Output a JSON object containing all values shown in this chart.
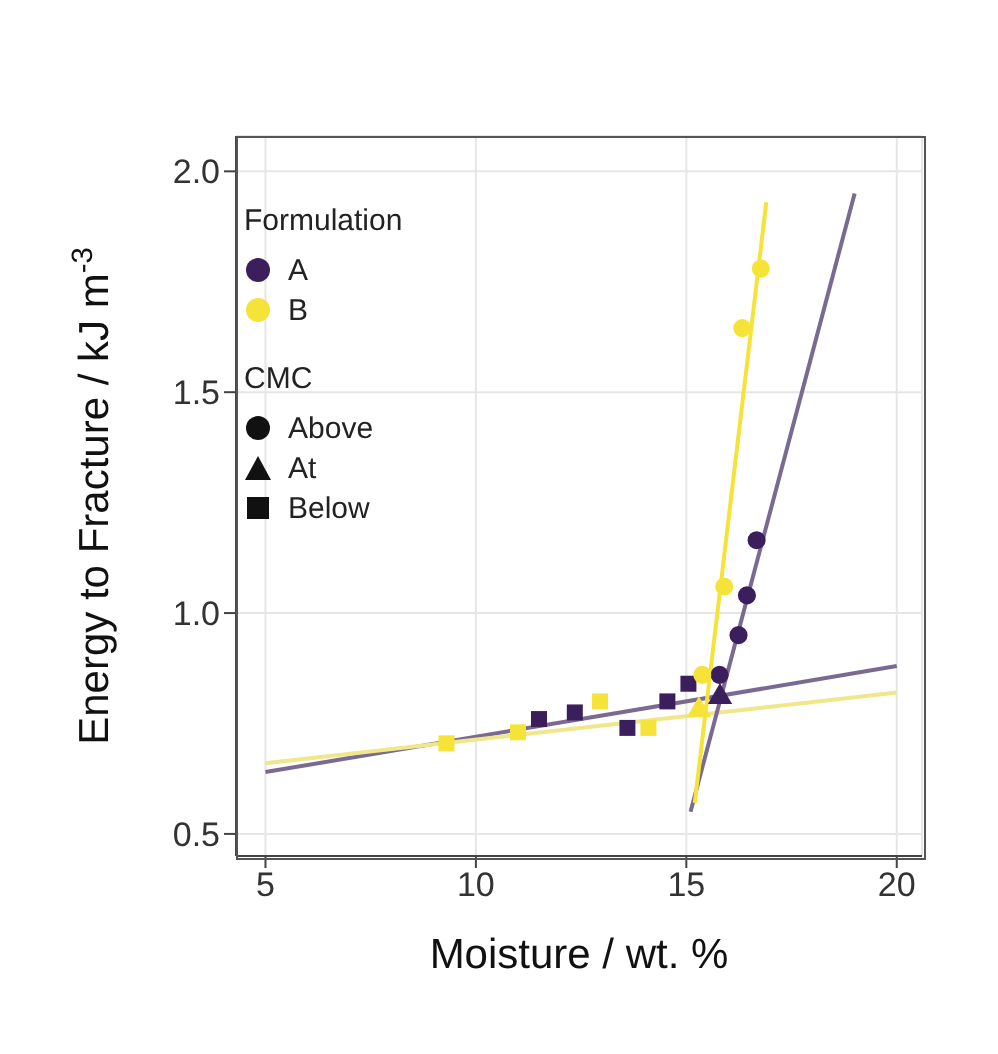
{
  "chart_data": {
    "type": "scatter",
    "xlabel": "Moisture  /  wt. %",
    "ylabel": "Energy to Fracture  /  kJ m$^{-3}$",
    "legend_title": "Formulation",
    "annotations": [
      "CMC",
      "Above",
      "At",
      "Below"
    ],
    "legend": "top left",
    "grid": true,
    "xlim": [
      4.3,
      20.6
    ],
    "xticks": [
      5,
      10,
      15,
      20
    ],
    "ylim": [
      0.45,
      2.08
    ],
    "yticks": [
      {
        "value": 0.5,
        "label": "0.5"
      },
      {
        "value": 1,
        "label": "1.0"
      },
      {
        "value": 1.5,
        "label": "1.5"
      },
      {
        "value": 2,
        "label": "2.0"
      }
    ],
    "series": [
      {
        "name": "A",
        "color": "#3b1f5c",
        "marker": "circle",
        "x": [
          15.79,
          16.24,
          16.44,
          16.67
        ],
        "values": [
          0.86,
          0.95,
          1.04,
          1.165
        ]
      },
      {
        "color": "#3b1f5c",
        "marker": "triangle",
        "x": [
          15.8
        ],
        "values": [
          0.81
        ]
      },
      {
        "color": "#3b1f5c",
        "marker": "square",
        "x": [
          11.5,
          12.35,
          13.6,
          14.55,
          15.05
        ],
        "values": [
          0.76,
          0.775,
          0.74,
          0.8,
          0.84
        ]
      },
      {
        "name": "B",
        "color": "#f5e33a",
        "marker": "circle",
        "x": [
          15.38,
          15.9,
          16.33,
          16.77
        ],
        "values": [
          0.86,
          1.06,
          1.645,
          1.78
        ]
      },
      {
        "color": "#f5e33a",
        "marker": "triangle",
        "x": [
          15.3
        ],
        "values": [
          0.78
        ]
      },
      {
        "color": "#f5e33a",
        "marker": "square",
        "x": [
          9.3,
          11.0,
          12.95,
          14.1
        ],
        "values": [
          0.705,
          0.73,
          0.8,
          0.74
        ]
      },
      {
        "type": "line",
        "color": "#7a6a92",
        "marker": "none",
        "x": [
          5,
          20
        ],
        "values": [
          0.64,
          0.88
        ]
      },
      {
        "type": "line",
        "color": "#f0e68a",
        "marker": "none",
        "x": [
          5,
          20
        ],
        "values": [
          0.66,
          0.82
        ]
      },
      {
        "type": "line",
        "color": "#7a6a92",
        "marker": "none",
        "x": [
          15.1,
          19.0
        ],
        "values": [
          0.55,
          1.95
        ]
      },
      {
        "type": "line",
        "color": "#f5e33a",
        "marker": "none",
        "x": [
          15.2,
          16.9
        ],
        "values": [
          0.57,
          1.93
        ]
      }
    ]
  }
}
